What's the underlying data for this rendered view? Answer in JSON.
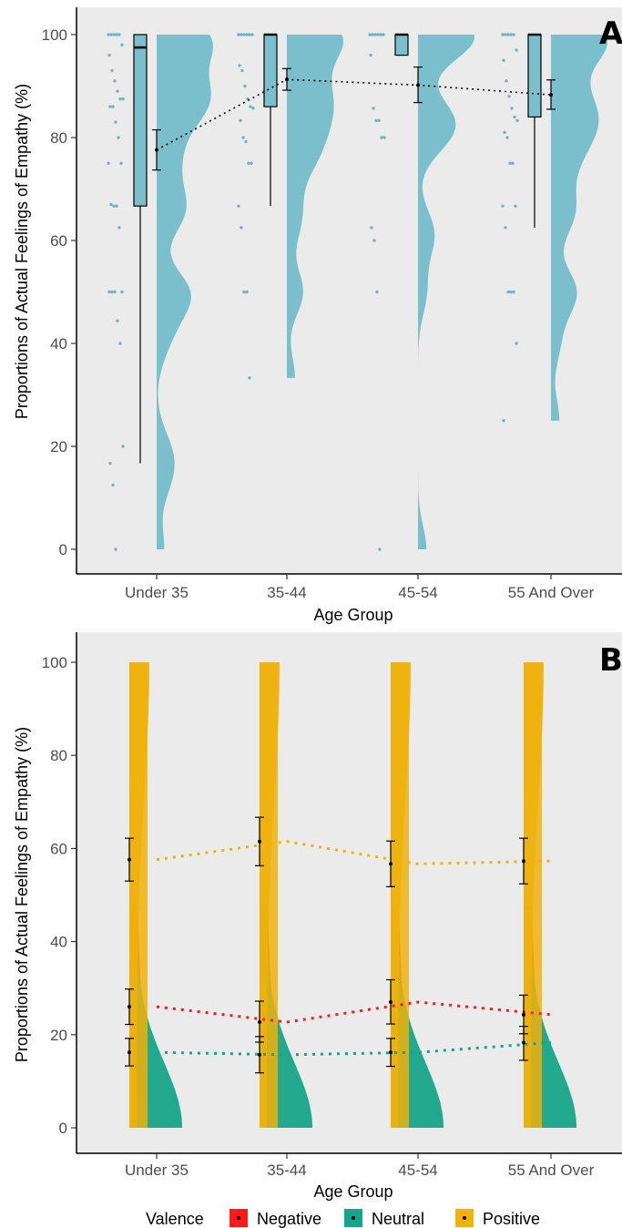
{
  "chart_data": [
    {
      "panel": "A",
      "type": "raincloud",
      "xlabel": "Age Group",
      "ylabel": "Proportions of Actual Feelings of Empathy (%)",
      "ylim": [
        0,
        100
      ],
      "yticks": [
        0,
        20,
        40,
        60,
        80,
        100
      ],
      "categories": [
        "Under 35",
        "35-44",
        "45-54",
        "55 And Over"
      ],
      "fill_color": "#7bbfcc",
      "points_color": "#6fb5c4",
      "boxes": [
        {
          "q1": 66.7,
          "median": 97.5,
          "q3": 100,
          "lo": 16.7,
          "hi": 100
        },
        {
          "q1": 86,
          "median": 100,
          "q3": 100,
          "lo": 66.7,
          "hi": 100
        },
        {
          "q1": 96,
          "median": 100,
          "q3": 100,
          "lo": 96,
          "hi": 100
        },
        {
          "q1": 84,
          "median": 100,
          "q3": 100,
          "lo": 62.5,
          "hi": 100
        }
      ],
      "means": [
        77.6,
        91.3,
        90.2,
        88.3
      ],
      "ci": [
        [
          73.7,
          81.5
        ],
        [
          89.2,
          93.4
        ],
        [
          86.8,
          93.7
        ],
        [
          85.5,
          91.2
        ]
      ],
      "points": [
        [
          100,
          100,
          100,
          100,
          100,
          98,
          96,
          93,
          91,
          89,
          87.5,
          87.5,
          86,
          86,
          83,
          80,
          75,
          75,
          67,
          66.7,
          66.7,
          62.5,
          50,
          50,
          50,
          50,
          44.4,
          40,
          20,
          16.7,
          12.5,
          0
        ],
        [
          100,
          100,
          100,
          100,
          100,
          100,
          94,
          93,
          90,
          87.5,
          86,
          85.7,
          83.3,
          80,
          79.2,
          75,
          75,
          66.7,
          62.5,
          50,
          50,
          33.3
        ],
        [
          100,
          100,
          100,
          100,
          100,
          100,
          96,
          85.7,
          83.3,
          83.3,
          80,
          80,
          62.5,
          60,
          50,
          0
        ],
        [
          100,
          100,
          100,
          100,
          100,
          97,
          95,
          91,
          88,
          85.7,
          84,
          83.3,
          81,
          80,
          75,
          75,
          66.7,
          66.7,
          62.5,
          50,
          50,
          50,
          40,
          25
        ]
      ]
    },
    {
      "panel": "B",
      "type": "raincloud",
      "xlabel": "Age Group",
      "ylabel": "Proportions of Actual Feelings of Empathy (%)",
      "ylim": [
        0,
        100
      ],
      "yticks": [
        0,
        20,
        40,
        60,
        80,
        100
      ],
      "categories": [
        "Under 35",
        "35-44",
        "45-54",
        "55 And Over"
      ],
      "series": [
        {
          "name": "Negative",
          "color": "#ff1a1a",
          "means": [
            26,
            22.7,
            27,
            24.3
          ],
          "ci": [
            [
              22.2,
              29.8
            ],
            [
              18.4,
              27.2
            ],
            [
              22.3,
              31.8
            ],
            [
              20.2,
              28.5
            ]
          ]
        },
        {
          "name": "Neutral",
          "color": "#17a589",
          "means": [
            16.2,
            15.7,
            16.2,
            18.3
          ],
          "ci": [
            [
              13.3,
              19.2
            ],
            [
              11.8,
              19.6
            ],
            [
              13.2,
              19.2
            ],
            [
              14.5,
              21.8
            ]
          ]
        },
        {
          "name": "Positive",
          "color": "#f0b20c",
          "means": [
            57.6,
            61.5,
            56.7,
            57.3
          ],
          "ci": [
            [
              53,
              62.2
            ],
            [
              56.3,
              66.7
            ],
            [
              51.8,
              61.6
            ],
            [
              52.4,
              62.2
            ]
          ]
        }
      ],
      "legend_title": "Valence",
      "legend_position": "bottom"
    }
  ]
}
